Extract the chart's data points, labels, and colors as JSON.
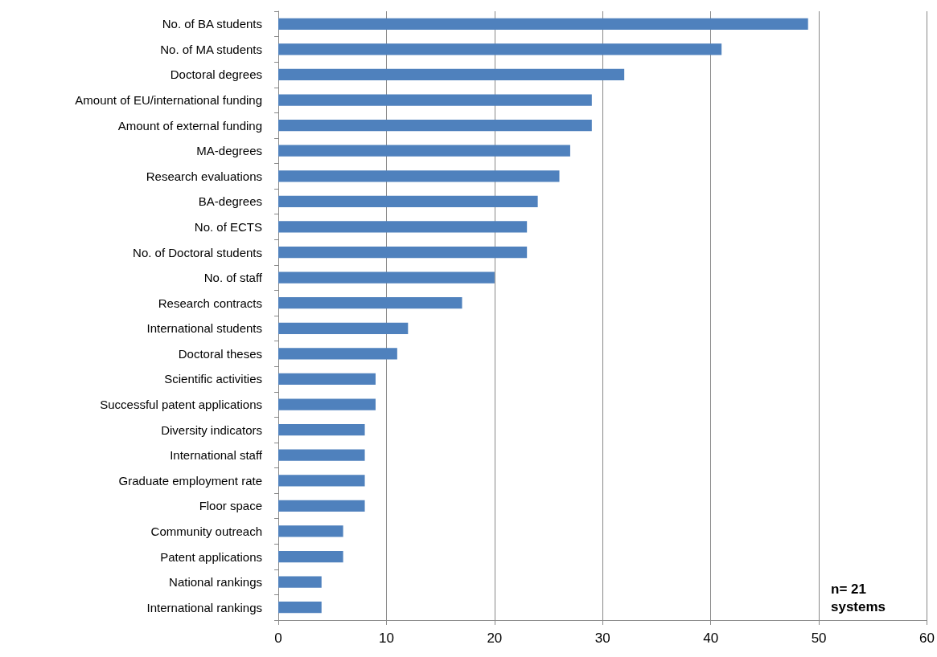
{
  "chart_data": {
    "type": "bar",
    "orientation": "horizontal",
    "categories": [
      "No. of BA students",
      "No. of MA students",
      "Doctoral degrees",
      "Amount of EU/international funding",
      "Amount of external funding",
      "MA-degrees",
      "Research evaluations",
      "BA-degrees",
      "No. of ECTS",
      "No. of Doctoral students",
      "No. of staff",
      "Research contracts",
      "International students",
      "Doctoral theses",
      "Scientific activities",
      "Successful patent applications",
      "Diversity indicators",
      "International staff",
      "Graduate employment rate",
      "Floor space",
      "Community outreach",
      "Patent applications",
      "National rankings",
      "International rankings"
    ],
    "values": [
      49,
      41,
      32,
      29,
      29,
      27,
      26,
      24,
      23,
      23,
      20,
      17,
      12,
      11,
      9,
      9,
      8,
      8,
      8,
      8,
      6,
      6,
      4,
      4
    ],
    "color": "#4f81bd",
    "xlim": [
      0,
      60
    ],
    "xticks": [
      0,
      10,
      20,
      30,
      40,
      50,
      60
    ],
    "grid": "x",
    "annotations": [
      "n= 21 systems"
    ]
  }
}
